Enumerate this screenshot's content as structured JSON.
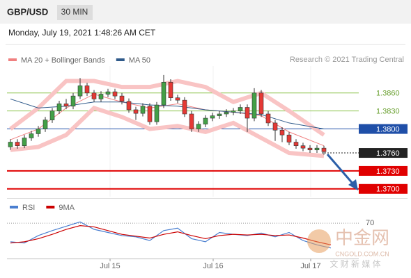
{
  "header": {
    "pair": "GBP/USD",
    "timeframe": "30 MIN",
    "datetime": "Monday, July 19, 2021 1:48:26 AM CET"
  },
  "watermark": {
    "logo": "中金网",
    "site": "CNGOLD.COM.CN",
    "slogan": "文 财 新 媒 体"
  },
  "chart_data": [
    {
      "type": "candlestick",
      "source": "Research © 2021 Trading Central",
      "up_color": "#43a047",
      "down_color": "#e53935",
      "x": [
        0,
        1,
        2,
        3,
        4,
        5,
        6,
        7,
        8,
        9,
        10,
        11,
        12,
        13,
        14,
        15,
        16,
        17,
        18,
        19,
        20,
        21,
        22,
        23,
        24,
        25,
        26,
        27,
        28,
        29,
        30,
        31,
        32,
        33,
        34,
        35,
        36,
        37,
        38,
        39,
        40,
        41,
        42,
        43,
        44,
        45
      ],
      "open": [
        1.377,
        1.3778,
        1.3772,
        1.3785,
        1.3792,
        1.38,
        1.3815,
        1.383,
        1.3842,
        1.3838,
        1.3855,
        1.3872,
        1.386,
        1.385,
        1.3858,
        1.3862,
        1.3855,
        1.3846,
        1.3832,
        1.3826,
        1.3838,
        1.3812,
        1.384,
        1.3878,
        1.3852,
        1.3848,
        1.3825,
        1.38,
        1.3808,
        1.3818,
        1.3822,
        1.3825,
        1.3828,
        1.383,
        1.3836,
        1.3818,
        1.386,
        1.3825,
        1.381,
        1.3798,
        1.379,
        1.3778,
        1.3772,
        1.3768,
        1.3765,
        1.3768
      ],
      "high": [
        1.3783,
        1.3783,
        1.379,
        1.3797,
        1.3805,
        1.382,
        1.3835,
        1.3847,
        1.385,
        1.386,
        1.3885,
        1.3877,
        1.3865,
        1.3863,
        1.3867,
        1.3867,
        1.386,
        1.3851,
        1.3837,
        1.3843,
        1.3843,
        1.3845,
        1.389,
        1.3883,
        1.3857,
        1.3853,
        1.383,
        1.3813,
        1.3823,
        1.3827,
        1.383,
        1.3833,
        1.3835,
        1.3841,
        1.3841,
        1.3868,
        1.3865,
        1.383,
        1.3815,
        1.3803,
        1.3795,
        1.3783,
        1.3777,
        1.3773,
        1.3773,
        1.3772
      ],
      "low": [
        1.3765,
        1.3767,
        1.3768,
        1.378,
        1.3787,
        1.3795,
        1.381,
        1.3825,
        1.3833,
        1.3833,
        1.385,
        1.3855,
        1.3845,
        1.3845,
        1.3853,
        1.385,
        1.3841,
        1.3827,
        1.3815,
        1.3821,
        1.3807,
        1.3807,
        1.3835,
        1.3847,
        1.3843,
        1.382,
        1.3795,
        1.3795,
        1.3803,
        1.3813,
        1.3817,
        1.382,
        1.3823,
        1.3825,
        1.3795,
        1.3813,
        1.382,
        1.3805,
        1.378,
        1.3778,
        1.3773,
        1.3767,
        1.3763,
        1.376,
        1.376,
        1.3757
      ],
      "close": [
        1.3778,
        1.3772,
        1.3785,
        1.3792,
        1.38,
        1.3815,
        1.383,
        1.3842,
        1.3838,
        1.3855,
        1.3872,
        1.386,
        1.385,
        1.3858,
        1.3862,
        1.3855,
        1.3846,
        1.3832,
        1.3826,
        1.3838,
        1.3812,
        1.384,
        1.3878,
        1.3852,
        1.3848,
        1.3825,
        1.38,
        1.3808,
        1.3818,
        1.3822,
        1.3825,
        1.3828,
        1.383,
        1.3836,
        1.3818,
        1.386,
        1.3825,
        1.381,
        1.3798,
        1.379,
        1.3778,
        1.3772,
        1.3768,
        1.3765,
        1.3768,
        1.3762
      ],
      "overlays": {
        "x": [
          0,
          4,
          8,
          12,
          16,
          20,
          24,
          28,
          32,
          36,
          40,
          45
        ],
        "series": [
          {
            "name": "MA 20 + Bollinger Bands",
            "color": "#f08080",
            "values": [
              1.3782,
              1.38,
              1.3835,
              1.3858,
              1.3845,
              1.3835,
              1.3842,
              1.3832,
              1.3828,
              1.3822,
              1.3795,
              1.3772
            ],
            "upper": [
              1.38,
              1.3835,
              1.388,
              1.388,
              1.387,
              1.387,
              1.388,
              1.387,
              1.3845,
              1.386,
              1.383,
              1.379
            ],
            "lower": [
              1.3765,
              1.377,
              1.379,
              1.3835,
              1.382,
              1.38,
              1.3805,
              1.3795,
              1.381,
              1.3785,
              1.376,
              1.3755
            ]
          },
          {
            "name": "MA 50",
            "color": "#2f5a8a",
            "values": [
              1.385,
              1.3835,
              1.3838,
              1.3845,
              1.3845,
              1.384,
              1.3838,
              1.3832,
              1.3828,
              1.3824,
              1.381,
              1.38
            ]
          }
        ]
      },
      "levels": [
        {
          "value": 1.386,
          "label": "1.3860",
          "color": "#8bc34a",
          "box": false,
          "dotted": false
        },
        {
          "value": 1.383,
          "label": "1.3830",
          "color": "#8bc34a",
          "box": false,
          "dotted": false
        },
        {
          "value": 1.38,
          "label": "1.3800",
          "color": "#1f4fa8",
          "box": true,
          "dotted": false
        },
        {
          "value": 1.376,
          "label": "1.3760",
          "color": "#222222",
          "box": true,
          "dotted": true
        },
        {
          "value": 1.373,
          "label": "1.3730",
          "color": "#e00000",
          "box": true,
          "dotted": false
        },
        {
          "value": 1.37,
          "label": "1.3700",
          "color": "#e00000",
          "box": true,
          "dotted": false
        }
      ],
      "xlim": [
        -0.3,
        50
      ],
      "ylim": [
        1.3687,
        1.3905
      ]
    },
    {
      "type": "line",
      "x": [
        0,
        2,
        4,
        6,
        8,
        10,
        12,
        14,
        16,
        18,
        20,
        22,
        24,
        26,
        28,
        30,
        32,
        34,
        36,
        38,
        40,
        42,
        44,
        46
      ],
      "series": [
        {
          "name": "RSI",
          "color": "#4a7fd0",
          "values": [
            40,
            38,
            50,
            58,
            65,
            72,
            60,
            55,
            50,
            48,
            42,
            58,
            62,
            45,
            40,
            55,
            52,
            50,
            54,
            48,
            55,
            42,
            35,
            30
          ]
        },
        {
          "name": "9MA",
          "color": "#cc0000",
          "values": [
            38,
            40,
            45,
            52,
            60,
            66,
            64,
            58,
            52,
            49,
            46,
            52,
            56,
            50,
            45,
            50,
            52,
            51,
            52,
            50,
            51,
            46,
            40,
            35
          ]
        }
      ],
      "xlim": [
        -0.3,
        50
      ],
      "ylim": [
        13,
        88
      ],
      "yticks": [
        70
      ],
      "xticks": [
        {
          "value": 14.3,
          "label": "Jul 15"
        },
        {
          "value": 29.1,
          "label": "Jul 16"
        },
        {
          "value": 43.1,
          "label": "Jul 17"
        }
      ]
    }
  ]
}
